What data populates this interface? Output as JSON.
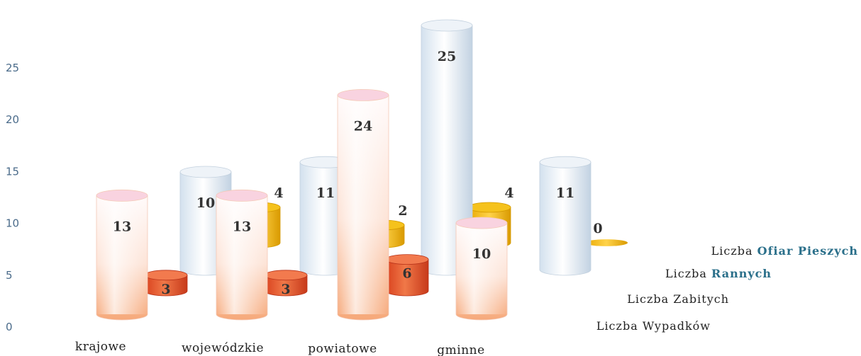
{
  "chart_data": {
    "type": "bar",
    "title": "",
    "ylim": [
      0,
      25
    ],
    "yticks": [
      0,
      5,
      10,
      15,
      20,
      25
    ],
    "categories": [
      "krajowe",
      "wojewódzkie",
      "powiatowe",
      "gminne"
    ],
    "series": [
      {
        "name": "Liczba Wypadków",
        "color": "#f6b38a",
        "values": [
          13,
          13,
          24,
          10
        ]
      },
      {
        "name": "Liczba Zabitych",
        "color": "#e8542a",
        "values": [
          3,
          3,
          6,
          0
        ]
      },
      {
        "name": "Liczba Rannych",
        "color": "#c6d6e6",
        "values": [
          null,
          10,
          11,
          25
        ]
      },
      {
        "name": "Liczba Ofiar Pieszych",
        "color": "#f0b400",
        "values": [
          null,
          4,
          2,
          4
        ]
      }
    ],
    "extra_bars": [
      {
        "series": "Liczba Rannych",
        "value": 11
      },
      {
        "series": "Liczba Ofiar Pieszych",
        "value": 0
      }
    ],
    "legend_placement": "right",
    "grid": false
  }
}
